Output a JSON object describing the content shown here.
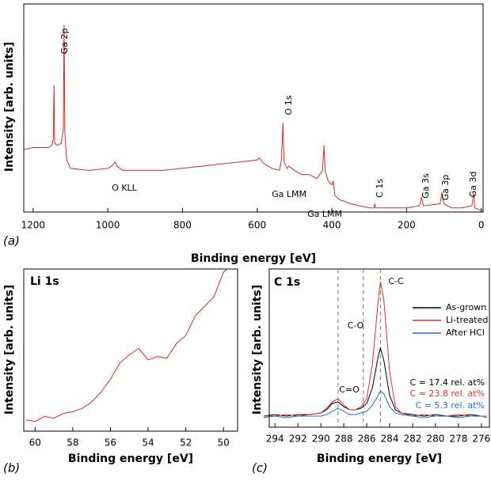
{
  "chart_data": [
    {
      "type": "line",
      "panel_label": "(a)",
      "xlabel": "Binding energy [eV]",
      "ylabel": "Intensity [arb. units]",
      "xlim": [
        1225,
        -5
      ],
      "ylim": [
        0,
        100
      ],
      "xticks": [
        1200,
        1000,
        800,
        600,
        400,
        200,
        0
      ],
      "color": "#d62728",
      "x": [
        1225,
        1200,
        1180,
        1160,
        1150,
        1146,
        1144,
        1142,
        1135,
        1125,
        1119,
        1117,
        1115,
        1110,
        1100,
        1050,
        1000,
        990,
        980,
        975,
        960,
        900,
        850,
        800,
        750,
        700,
        650,
        600,
        595,
        580,
        560,
        540,
        535,
        531,
        528,
        520,
        515,
        500,
        480,
        460,
        440,
        425,
        421,
        418,
        410,
        400,
        396,
        392,
        380,
        350,
        300,
        287,
        285,
        283,
        250,
        200,
        165,
        160,
        155,
        110,
        105,
        100,
        80,
        50,
        25,
        20,
        17,
        5,
        -5
      ],
      "values": [
        30,
        31,
        31,
        31,
        32,
        35,
        61,
        33,
        32,
        33,
        40,
        90,
        38,
        25,
        21,
        20,
        21,
        22,
        24,
        22,
        20,
        20,
        20,
        21,
        22,
        23,
        24,
        25,
        26,
        23,
        21,
        20,
        25,
        43,
        24,
        21,
        22,
        20,
        18,
        18,
        16,
        20,
        32,
        20,
        15,
        13,
        15,
        8,
        6,
        4,
        2,
        2,
        4,
        2,
        2,
        2,
        3,
        7,
        3,
        4,
        9.5,
        4,
        2,
        2,
        3,
        9,
        2,
        1,
        1
      ],
      "annotations": [
        {
          "text": "Ga 2p"
        },
        {
          "text": "O 1s"
        },
        {
          "text": "O KLL"
        },
        {
          "text": "Ga LMM"
        },
        {
          "text": "Ga LMM"
        },
        {
          "text": "C 1s"
        },
        {
          "text": "Ga 3s"
        },
        {
          "text": "Ga 3p"
        },
        {
          "text": "Ga 3d"
        }
      ]
    },
    {
      "type": "line",
      "panel_label": "(b)",
      "title": "Li 1s",
      "xlabel": "Binding energy [eV]",
      "ylabel": "Intensity [arb. units]",
      "xlim": [
        60.6,
        49.25
      ],
      "ylim": [
        0,
        100
      ],
      "xticks": [
        60,
        58,
        56,
        54,
        52,
        50
      ],
      "color": "#d62728",
      "x": [
        60.5,
        60,
        59.5,
        59,
        58.5,
        58,
        57.5,
        57,
        56.5,
        56,
        55.5,
        55,
        54.5,
        54,
        53.5,
        53,
        52.5,
        52,
        51.5,
        51,
        50.5,
        50,
        49.8
      ],
      "values": [
        7,
        6,
        9,
        8,
        11,
        12,
        14,
        18,
        24,
        32,
        42,
        47,
        51,
        44,
        46,
        45,
        54,
        59,
        71,
        77,
        83,
        98,
        100
      ]
    },
    {
      "type": "line",
      "panel_label": "(c)",
      "title": "C 1s",
      "xlabel": "Binding energy [eV]",
      "ylabel": "Intensity [arb. units]",
      "xlim": [
        294.5,
        275.3
      ],
      "ylim": [
        0,
        100
      ],
      "xticks": [
        294,
        292,
        290,
        288,
        286,
        284,
        282,
        280,
        278,
        276
      ],
      "vlines": [
        288.5,
        286.3,
        284.8
      ],
      "x": [
        295,
        294,
        293,
        292,
        291,
        290,
        289.5,
        289,
        288.5,
        288,
        287.5,
        287,
        286.5,
        286,
        285.5,
        285,
        284.8,
        284.5,
        284,
        283.5,
        283,
        282,
        281,
        280,
        279,
        278,
        277,
        276,
        275.5
      ],
      "series": [
        {
          "name": "As-grown",
          "color": "#000000",
          "values": [
            7,
            8,
            7,
            8,
            8,
            9,
            11,
            15,
            16,
            13,
            11,
            11,
            12,
            15,
            25,
            45,
            50,
            42,
            20,
            11,
            9,
            8,
            7,
            8,
            7,
            7,
            8,
            7,
            7
          ]
        },
        {
          "name": "Li-treated",
          "color": "#e03030",
          "values": [
            7,
            7,
            8,
            7,
            8,
            9,
            12,
            16,
            18,
            14,
            11,
            11,
            13,
            18,
            40,
            80,
            92,
            80,
            35,
            13,
            9,
            7,
            8,
            7,
            7,
            8,
            7,
            7,
            7
          ]
        },
        {
          "name": "After HCl",
          "color": "#1f6fd0",
          "values": [
            6,
            7,
            6,
            7,
            7,
            7,
            8,
            10,
            12,
            10,
            8,
            8,
            9,
            10,
            14,
            20,
            23,
            21,
            13,
            9,
            8,
            7,
            6,
            7,
            7,
            6,
            7,
            7,
            6
          ]
        }
      ],
      "annotations": [
        {
          "text": "C=O"
        },
        {
          "text": "C-O"
        },
        {
          "text": "C-C"
        },
        {
          "text": "C = 17.4 rel. at%",
          "color": "#000000"
        },
        {
          "text": "C = 23.8 rel. at%",
          "color": "#e03030"
        },
        {
          "text": "C = 5.3 rel. at%",
          "color": "#1f6fd0"
        }
      ]
    }
  ]
}
